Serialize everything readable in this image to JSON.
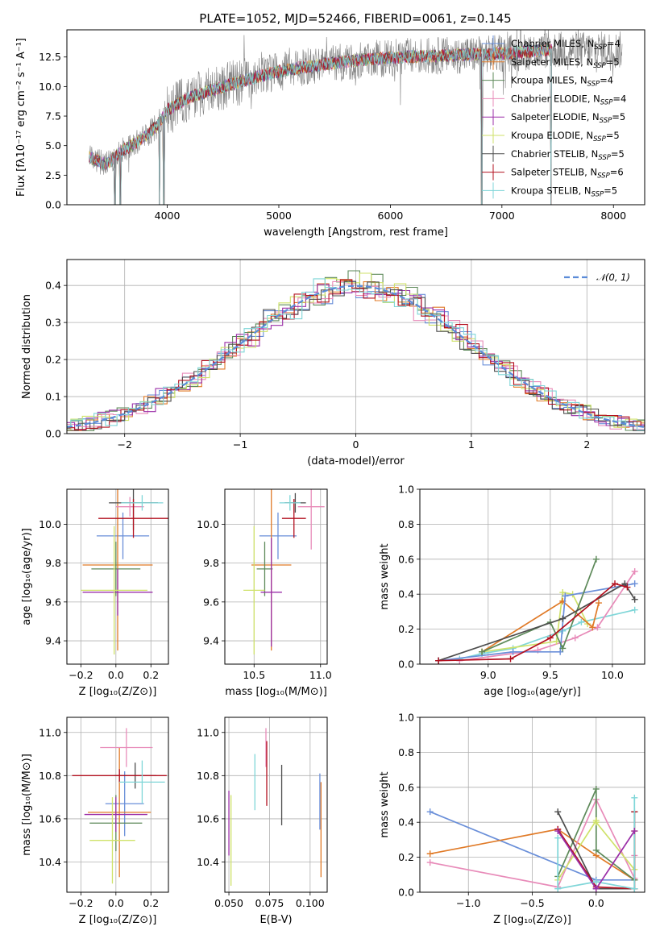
{
  "figure_title": "PLATE=1052, MJD=52466, FIBERID=0061, z=0.145",
  "palette": {
    "Chabrier MILES": "#6a8fd9",
    "Salpeter MILES": "#e07a27",
    "Kroupa MILES": "#5e8a5a",
    "Chabrier ELODIE": "#e88bb9",
    "Salpeter ELODIE": "#9b2fa8",
    "Kroupa ELODIE": "#cfe26a",
    "Chabrier STELIB": "#4d4d4d",
    "Salpeter STELIB": "#b3101f",
    "Kroupa STELIB": "#7fd6d8",
    "data": "#808080",
    "gauss": "#5b8bd8"
  },
  "chart_data": [
    {
      "id": "spectrum",
      "type": "line",
      "title": "PLATE=1052, MJD=52466, FIBERID=0061, z=0.145",
      "xlabel": "wavelength [Angstrom, rest frame]",
      "ylabel": "Flux [fλ10⁻¹⁷ erg cm⁻² s⁻¹ A⁻¹]",
      "xlim": [
        3100,
        8280
      ],
      "ylim": [
        0,
        14.8
      ],
      "xticks": [
        "4000",
        "5000",
        "6000",
        "7000",
        "8000"
      ],
      "xtick_values": [
        4000,
        5000,
        6000,
        7000,
        8000
      ],
      "yticks": [
        "0.0",
        "2.5",
        "5.0",
        "7.5",
        "10.0",
        "12.5"
      ],
      "ytick_values": [
        0,
        2.5,
        5.0,
        7.5,
        10.0,
        12.5
      ],
      "continuum": {
        "x": [
          3300,
          3450,
          3600,
          3750,
          3900,
          4000,
          4200,
          4500,
          4800,
          5000,
          5200,
          5500,
          5800,
          6100,
          6400,
          6700,
          7000,
          7300,
          7400
        ],
        "y": [
          4.0,
          3.4,
          4.6,
          5.4,
          6.6,
          8.0,
          9.1,
          10.0,
          10.8,
          11.3,
          11.6,
          12.0,
          12.3,
          12.5,
          12.6,
          12.7,
          12.8,
          13.0,
          13.1
        ]
      },
      "data_range": [
        3300,
        8080
      ],
      "dips": [
        3530,
        3580,
        3930,
        3970,
        6820,
        7440
      ],
      "legend": [
        {
          "label": "Chabrier MILES, N",
          "sub": "SSP",
          "eq": "=4"
        },
        {
          "label": "Salpeter MILES, N",
          "sub": "SSP",
          "eq": "=5"
        },
        {
          "label": "Kroupa MILES, N",
          "sub": "SSP",
          "eq": "=4"
        },
        {
          "label": "Chabrier ELODIE, N",
          "sub": "SSP",
          "eq": "=4"
        },
        {
          "label": "Salpeter ELODIE, N",
          "sub": "SSP",
          "eq": "=5"
        },
        {
          "label": "Kroupa ELODIE, N",
          "sub": "SSP",
          "eq": "=5"
        },
        {
          "label": "Chabrier STELIB, N",
          "sub": "SSP",
          "eq": "=5"
        },
        {
          "label": "Salpeter STELIB, N",
          "sub": "SSP",
          "eq": "=6"
        },
        {
          "label": "Kroupa STELIB, N",
          "sub": "SSP",
          "eq": "=5"
        }
      ]
    },
    {
      "id": "residuals",
      "type": "histogram",
      "xlabel": "(data-model)/error",
      "ylabel": "Normed distribution",
      "xlim": [
        -2.5,
        2.5
      ],
      "ylim": [
        0,
        0.47
      ],
      "xticks": [
        "−2",
        "−1",
        "0",
        "1",
        "2"
      ],
      "xtick_values": [
        -2,
        -1,
        0,
        1,
        2
      ],
      "yticks": [
        "0.0",
        "0.1",
        "0.2",
        "0.3",
        "0.4"
      ],
      "ytick_values": [
        0,
        0.1,
        0.2,
        0.3,
        0.4
      ],
      "grid": true,
      "bin_width": 0.1,
      "legend": [
        {
          "label": "𝒩(0, 1)",
          "style": "dashed"
        }
      ]
    },
    {
      "id": "age_vs_Z",
      "type": "errorbar",
      "xlabel": "Z [log₁₀(Z/Z⊙)]",
      "ylabel": "age  [log₁₀(age/yr)]",
      "xlim": [
        -0.28,
        0.3
      ],
      "ylim": [
        9.28,
        10.18
      ],
      "xticks": [
        "−0.2",
        "0.0",
        "0.2"
      ],
      "xtick_values": [
        -0.2,
        0.0,
        0.2
      ],
      "yticks": [
        "9.4",
        "9.6",
        "9.8",
        "10.0"
      ],
      "ytick_values": [
        9.4,
        9.6,
        9.8,
        10.0
      ],
      "points": [
        {
          "series": "Chabrier MILES",
          "x": 0.04,
          "y": 9.94,
          "xerr": 0.15,
          "yerr": 0.12
        },
        {
          "series": "Salpeter MILES",
          "x": 0.01,
          "y": 9.79,
          "xerr": 0.2,
          "yerr": 0.44
        },
        {
          "series": "Kroupa MILES",
          "x": 0.0,
          "y": 9.77,
          "xerr": 0.14,
          "yerr": 0.14
        },
        {
          "series": "Chabrier ELODIE",
          "x": 0.08,
          "y": 10.09,
          "xerr": 0.08,
          "yerr": 0.05
        },
        {
          "series": "Salpeter ELODIE",
          "x": 0.01,
          "y": 9.65,
          "xerr": 0.2,
          "yerr": 0.12
        },
        {
          "series": "Kroupa ELODIE",
          "x": -0.01,
          "y": 9.66,
          "xerr": 0.19,
          "yerr": 0.33
        },
        {
          "series": "Chabrier STELIB",
          "x": 0.1,
          "y": 10.11,
          "xerr": 0.14,
          "yerr": 0.14
        },
        {
          "series": "Salpeter STELIB",
          "x": 0.1,
          "y": 10.03,
          "xerr": 0.2,
          "yerr": 0.1
        },
        {
          "series": "Kroupa STELIB",
          "x": 0.15,
          "y": 10.11,
          "xerr": 0.12,
          "yerr": 0.04
        }
      ]
    },
    {
      "id": "age_vs_mass",
      "type": "errorbar",
      "xlabel": "mass [log₁₀(M/M⊙)]",
      "ylabel": "",
      "xlim": [
        10.28,
        11.05
      ],
      "ylim": [
        9.28,
        10.18
      ],
      "xticks": [
        "10.5",
        "11.0"
      ],
      "xtick_values": [
        10.5,
        11.0
      ],
      "yticks": [
        "9.4",
        "9.6",
        "9.8",
        "10.0"
      ],
      "ytick_values": [
        9.4,
        9.6,
        9.8,
        10.0
      ],
      "points": [
        {
          "series": "Chabrier MILES",
          "x": 10.68,
          "y": 9.94,
          "xerr": 0.14,
          "yerr": 0.12
        },
        {
          "series": "Salpeter MILES",
          "x": 10.63,
          "y": 9.79,
          "xerr": 0.15,
          "yerr": 0.44
        },
        {
          "series": "Kroupa MILES",
          "x": 10.58,
          "y": 9.77,
          "xerr": 0.06,
          "yerr": 0.14
        },
        {
          "series": "Chabrier ELODIE",
          "x": 10.93,
          "y": 10.09,
          "xerr": 0.1,
          "yerr": 0.22
        },
        {
          "series": "Salpeter ELODIE",
          "x": 10.63,
          "y": 9.65,
          "xerr": 0.08,
          "yerr": 0.28
        },
        {
          "series": "Kroupa ELODIE",
          "x": 10.5,
          "y": 9.66,
          "xerr": 0.08,
          "yerr": 0.33
        },
        {
          "series": "Chabrier STELIB",
          "x": 10.81,
          "y": 10.11,
          "xerr": 0.08,
          "yerr": 0.05
        },
        {
          "series": "Salpeter STELIB",
          "x": 10.8,
          "y": 10.03,
          "xerr": 0.09,
          "yerr": 0.1
        },
        {
          "series": "Kroupa STELIB",
          "x": 10.77,
          "y": 10.11,
          "xerr": 0.08,
          "yerr": 0.04
        }
      ]
    },
    {
      "id": "mass_weight_vs_age",
      "type": "line",
      "xlabel": "age  [log₁₀(age/yr)]",
      "ylabel": "mass weight",
      "xlim": [
        8.45,
        10.26
      ],
      "ylim": [
        0,
        1.0
      ],
      "xticks": [
        "9.0",
        "9.5",
        "10.0"
      ],
      "xtick_values": [
        9.0,
        9.5,
        10.0
      ],
      "yticks": [
        "0.0",
        "0.2",
        "0.4",
        "0.6",
        "0.8",
        "1.0"
      ],
      "ytick_values": [
        0,
        0.2,
        0.4,
        0.6,
        0.8,
        1.0
      ],
      "series": [
        {
          "name": "Kroupa STELIB",
          "x": [
            8.6,
            8.77,
            8.95,
            9.2,
            9.6,
            9.75,
            10.18
          ],
          "y": [
            0.02,
            0.03,
            0.06,
            0.09,
            0.19,
            0.24,
            0.31
          ]
        },
        {
          "name": "Chabrier ELODIE",
          "x": [
            8.77,
            9.4,
            9.7,
            9.88,
            10.18
          ],
          "y": [
            0.02,
            0.08,
            0.15,
            0.21,
            0.53
          ]
        },
        {
          "name": "Kroupa ELODIE",
          "x": [
            8.95,
            9.55,
            9.6,
            9.68,
            9.8
          ],
          "y": [
            0.07,
            0.13,
            0.41,
            0.4,
            0.23
          ]
        },
        {
          "name": "Salpeter MILES",
          "x": [
            8.95,
            9.6,
            9.84,
            9.89
          ],
          "y": [
            0.07,
            0.36,
            0.21,
            0.35
          ]
        },
        {
          "name": "Chabrier MILES",
          "x": [
            8.6,
            9.2,
            9.58,
            9.62,
            10.18
          ],
          "y": [
            0.02,
            0.07,
            0.07,
            0.39,
            0.46
          ]
        },
        {
          "name": "Kroupa MILES",
          "x": [
            8.95,
            9.5,
            9.6,
            9.87
          ],
          "y": [
            0.07,
            0.24,
            0.09,
            0.6
          ]
        },
        {
          "name": "Chabrier STELIB",
          "x": [
            8.6,
            9.6,
            10.1,
            10.18
          ],
          "y": [
            0.02,
            0.26,
            0.46,
            0.37
          ]
        },
        {
          "name": "Salpeter STELIB",
          "x": [
            8.6,
            9.18,
            9.5,
            10.02,
            10.12
          ],
          "y": [
            0.02,
            0.03,
            0.15,
            0.46,
            0.44
          ]
        }
      ]
    },
    {
      "id": "mass_vs_Z",
      "type": "errorbar",
      "xlabel": "Z [log₁₀(Z/Z⊙)]",
      "ylabel": "mass [log₁₀(M/M⊙)]",
      "xlim": [
        -0.28,
        0.3
      ],
      "ylim": [
        10.26,
        11.07
      ],
      "xticks": [
        "−0.2",
        "0.0",
        "0.2"
      ],
      "xtick_values": [
        -0.2,
        0.0,
        0.2
      ],
      "yticks": [
        "10.4",
        "10.6",
        "10.8",
        "11.0"
      ],
      "ytick_values": [
        10.4,
        10.6,
        10.8,
        11.0
      ],
      "points": [
        {
          "series": "Chabrier MILES",
          "x": 0.05,
          "y": 10.67,
          "xerr": 0.11,
          "yerr": 0.15
        },
        {
          "series": "Salpeter MILES",
          "x": 0.02,
          "y": 10.63,
          "xerr": 0.18,
          "yerr": 0.3
        },
        {
          "series": "Kroupa MILES",
          "x": 0.0,
          "y": 10.58,
          "xerr": 0.15,
          "yerr": 0.13
        },
        {
          "series": "Chabrier ELODIE",
          "x": 0.06,
          "y": 10.93,
          "xerr": 0.15,
          "yerr": 0.09
        },
        {
          "series": "Salpeter ELODIE",
          "x": 0.0,
          "y": 10.62,
          "xerr": 0.18,
          "yerr": 0.08
        },
        {
          "series": "Kroupa ELODIE",
          "x": -0.02,
          "y": 10.5,
          "xerr": 0.13,
          "yerr": 0.2
        },
        {
          "series": "Chabrier STELIB",
          "x": 0.11,
          "y": 10.8,
          "xerr": 0.12,
          "yerr": 0.06
        },
        {
          "series": "Salpeter STELIB",
          "x": 0.02,
          "y": 10.8,
          "xerr": 0.27,
          "yerr": 0.03
        },
        {
          "series": "Kroupa STELIB",
          "x": 0.15,
          "y": 10.77,
          "xerr": 0.13,
          "yerr": 0.1
        }
      ]
    },
    {
      "id": "mass_vs_ebv",
      "type": "errorbar",
      "xlabel": "E(B-V)",
      "ylabel": "",
      "xlim": [
        0.0475,
        0.1105
      ],
      "ylim": [
        10.26,
        11.07
      ],
      "xticks": [
        "0.050",
        "0.075",
        "0.100"
      ],
      "xtick_values": [
        0.05,
        0.075,
        0.1
      ],
      "yticks": [
        "10.4",
        "10.6",
        "10.8",
        "11.0"
      ],
      "ytick_values": [
        10.4,
        10.6,
        10.8,
        11.0
      ],
      "points": [
        {
          "series": "Salpeter ELODIE",
          "x": 0.05,
          "y": 10.58,
          "xerr": 0,
          "yerr": 0.15
        },
        {
          "series": "Kroupa ELODIE",
          "x": 0.0513,
          "y": 10.5,
          "xerr": 0,
          "yerr": 0.21
        },
        {
          "series": "Kroupa STELIB",
          "x": 0.066,
          "y": 10.77,
          "xerr": 0,
          "yerr": 0.13
        },
        {
          "series": "Chabrier ELODIE",
          "x": 0.0728,
          "y": 10.93,
          "xerr": 0,
          "yerr": 0.09
        },
        {
          "series": "Salpeter STELIB",
          "x": 0.0733,
          "y": 10.81,
          "xerr": 0,
          "yerr": 0.15
        },
        {
          "series": "Chabrier STELIB",
          "x": 0.0825,
          "y": 10.71,
          "xerr": 0,
          "yerr": 0.14
        },
        {
          "series": "Chabrier MILES",
          "x": 0.106,
          "y": 10.68,
          "xerr": 0,
          "yerr": 0.13
        },
        {
          "series": "Salpeter MILES",
          "x": 0.1067,
          "y": 10.55,
          "xerr": 0,
          "yerr": 0.22
        }
      ]
    },
    {
      "id": "mass_weight_vs_Z",
      "type": "line",
      "xlabel": "Z [log₁₀(Z/Z⊙)]",
      "ylabel": "mass weight",
      "xlim": [
        -1.38,
        0.38
      ],
      "ylim": [
        0,
        1.0
      ],
      "xticks": [
        "−1.0",
        "−0.5",
        "0.0"
      ],
      "xtick_values": [
        -1.0,
        -0.5,
        0.0
      ],
      "yticks": [
        "0.0",
        "0.2",
        "0.4",
        "0.6",
        "0.8",
        "1.0"
      ],
      "ytick_values": [
        0,
        0.2,
        0.4,
        0.6,
        0.8,
        1.0
      ],
      "series": [
        {
          "name": "Chabrier MILES",
          "x": [
            -1.3,
            0.0,
            0.3
          ],
          "y": [
            0.46,
            0.07,
            0.07
          ]
        },
        {
          "name": "Salpeter MILES",
          "x": [
            -1.3,
            -0.3,
            0.0,
            0.3,
            0.3
          ],
          "y": [
            0.22,
            0.36,
            0.21,
            0.07,
            0.35
          ]
        },
        {
          "name": "Chabrier ELODIE",
          "x": [
            -1.3,
            -0.3,
            0.0,
            0.3,
            0.3
          ],
          "y": [
            0.17,
            0.03,
            0.53,
            0.08,
            0.21
          ]
        },
        {
          "name": "Kroupa MILES",
          "x": [
            -0.3,
            0.0,
            0.0,
            0.3
          ],
          "y": [
            0.09,
            0.59,
            0.24,
            0.07
          ]
        },
        {
          "name": "Kroupa ELODIE",
          "x": [
            -0.3,
            0.0,
            0.0,
            0.3
          ],
          "y": [
            0.07,
            0.41,
            0.4,
            0.13
          ]
        },
        {
          "name": "Chabrier STELIB",
          "x": [
            -0.3,
            0.0,
            0.3,
            0.3
          ],
          "y": [
            0.46,
            0.02,
            0.02,
            0.46
          ]
        },
        {
          "name": "Salpeter STELIB",
          "x": [
            -0.3,
            0.0,
            0.3,
            0.3
          ],
          "y": [
            0.36,
            0.03,
            0.02,
            0.46
          ]
        },
        {
          "name": "Kroupa STELIB",
          "x": [
            -0.3,
            -0.3,
            0.0,
            0.3,
            0.3
          ],
          "y": [
            0.31,
            0.02,
            0.06,
            0.02,
            0.54
          ]
        },
        {
          "name": "Salpeter ELODIE",
          "x": [
            -0.3,
            0.0,
            0.3
          ],
          "y": [
            0.35,
            0.02,
            0.35
          ]
        }
      ]
    }
  ]
}
